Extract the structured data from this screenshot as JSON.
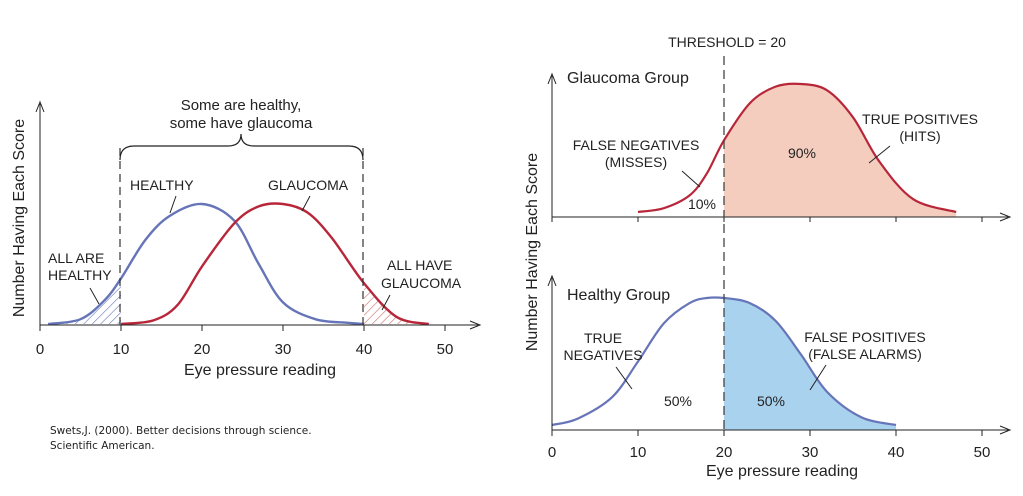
{
  "colors": {
    "healthy": "#6674b8",
    "glaucoma": "#b8263a",
    "healthy_fill": "#a9d2ee",
    "glaucoma_fill": "#f4cdbf",
    "axis": "#222222"
  },
  "citation": {
    "line1": "Swets,J. (2000). Better decisions through science.",
    "line2": "Scientific American."
  },
  "chart_data": [
    {
      "type": "line",
      "ylabel": "Number Having Each Score",
      "xlabel": "Eye pressure reading",
      "xlim": [
        0,
        50
      ],
      "xticks": [
        0,
        10,
        20,
        30,
        40,
        50
      ],
      "grid": false,
      "series": [
        {
          "name": "HEALTHY",
          "x": [
            1,
            5,
            8,
            10,
            13,
            16,
            20,
            24,
            27,
            30,
            34,
            38,
            40
          ],
          "y": [
            0.0,
            0.04,
            0.2,
            0.38,
            0.7,
            0.9,
            1.0,
            0.86,
            0.5,
            0.18,
            0.04,
            0.01,
            0.0
          ]
        },
        {
          "name": "GLAUCOMA",
          "x": [
            10,
            14,
            17,
            20,
            24,
            27,
            30,
            33,
            36,
            40,
            44,
            48
          ],
          "y": [
            0.0,
            0.03,
            0.16,
            0.48,
            0.84,
            0.98,
            1.0,
            0.93,
            0.72,
            0.34,
            0.06,
            0.0
          ]
        }
      ],
      "annotations": {
        "brace_line1": "Some are healthy,",
        "brace_line2": "some have glaucoma",
        "all_healthy_1": "ALL ARE",
        "all_healthy_2": "HEALTHY",
        "all_glaucoma_1": "ALL HAVE",
        "all_glaucoma_2": "GLAUCOMA"
      },
      "shaded": [
        {
          "series": "HEALTHY",
          "from": 0,
          "to": 10,
          "pattern": "hatch"
        },
        {
          "series": "GLAUCOMA",
          "from": 40,
          "to": 50,
          "pattern": "hatch"
        }
      ]
    },
    {
      "type": "area",
      "ylabel": "Number Having Each Score",
      "xlabel": "Eye pressure reading",
      "xlim": [
        0,
        50
      ],
      "xticks": [
        0,
        10,
        20,
        30,
        40,
        50
      ],
      "threshold": 20,
      "threshold_label": "THRESHOLD = 20",
      "grid": false,
      "panels": [
        {
          "title": "Glaucoma Group",
          "series": {
            "name": "Glaucoma Group",
            "x": [
              10,
              13,
              16,
              18,
              20,
              23,
              26,
              29,
              32,
              35,
              38,
              42,
              47
            ],
            "y": [
              0.0,
              0.03,
              0.13,
              0.3,
              0.56,
              0.85,
              0.98,
              1.0,
              0.95,
              0.74,
              0.4,
              0.1,
              0.0
            ]
          },
          "annotations": {
            "fn_1": "FALSE NEGATIVES",
            "fn_2": "(MISSES)",
            "fn_pct": "10%",
            "tp_1": "TRUE POSITIVES",
            "tp_2": "(HITS)",
            "tp_pct": "90%"
          }
        },
        {
          "title": "Healthy Group",
          "series": {
            "name": "Healthy Group",
            "x": [
              0,
              3,
              7,
              10,
              13,
              16,
              18,
              20,
              23,
              26,
              29,
              32,
              36,
              40
            ],
            "y": [
              0.0,
              0.05,
              0.22,
              0.5,
              0.8,
              0.96,
              1.0,
              1.0,
              0.96,
              0.82,
              0.55,
              0.26,
              0.06,
              0.0
            ]
          },
          "annotations": {
            "tn_1": "TRUE",
            "tn_2": "NEGATIVES",
            "tn_pct": "50%",
            "fp_1": "FALSE POSITIVES",
            "fp_2": "(FALSE ALARMS)",
            "fp_pct": "50%"
          }
        }
      ]
    }
  ]
}
